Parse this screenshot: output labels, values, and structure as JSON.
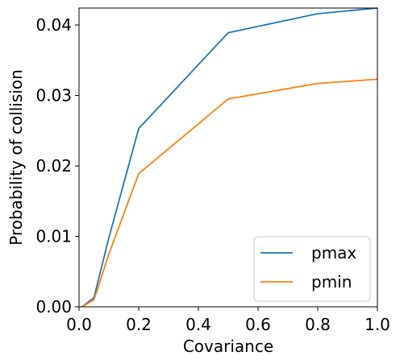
{
  "chart_data": {
    "type": "line",
    "xlabel": "Covariance",
    "ylabel": "Probability of collision",
    "xlim": [
      0.0,
      1.0
    ],
    "ylim": [
      0.0,
      0.0424
    ],
    "x_ticks": [
      0.0,
      0.2,
      0.4,
      0.6,
      0.8,
      1.0
    ],
    "x_tick_labels": [
      "0.0",
      "0.2",
      "0.4",
      "0.6",
      "0.8",
      "1.0"
    ],
    "y_ticks": [
      0.0,
      0.01,
      0.02,
      0.03,
      0.04
    ],
    "y_tick_labels": [
      "0.00",
      "0.01",
      "0.02",
      "0.03",
      "0.04"
    ],
    "grid": false,
    "legend_position": "lower-right",
    "series": [
      {
        "name": "pmax",
        "color": "#1f77b4",
        "x": [
          0.01,
          0.05,
          0.1,
          0.2,
          0.5,
          0.8,
          1.0
        ],
        "y": [
          0.0,
          0.0013,
          0.0098,
          0.0253,
          0.0389,
          0.0416,
          0.0424
        ]
      },
      {
        "name": "pmin",
        "color": "#ff7f0e",
        "x": [
          0.01,
          0.05,
          0.1,
          0.2,
          0.5,
          0.8,
          1.0
        ],
        "y": [
          0.0,
          0.001,
          0.0075,
          0.0189,
          0.0295,
          0.0317,
          0.0323
        ]
      }
    ]
  }
}
